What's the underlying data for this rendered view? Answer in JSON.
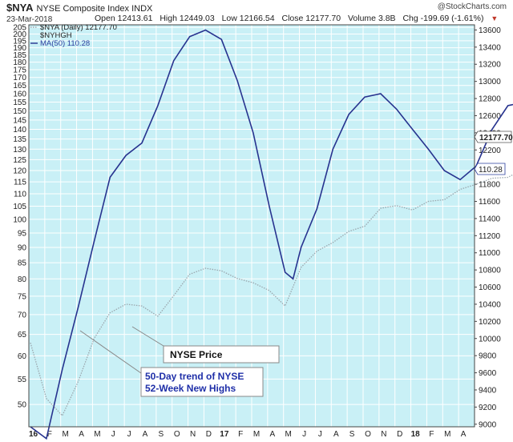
{
  "header": {
    "symbol": "$NYA",
    "description": "NYSE Composite Index  INDX",
    "date": "23-Mar-2018",
    "open_label": "Open",
    "open": "12413.61",
    "high_label": "High",
    "high": "12449.03",
    "low_label": "Low",
    "low": "12166.54",
    "close_label": "Close",
    "close": "12177.70",
    "volume_label": "Volume",
    "volume": "3.8B",
    "chg_label": "Chg",
    "chg": "-199.69 (-1.61%)",
    "brand": "@StockCharts.com"
  },
  "legend": {
    "price": "$NYA (Daily) 12177.70",
    "highs": "$NYHGH",
    "ma": "MA(50) 110.28"
  },
  "callouts": {
    "price": "NYSE Price",
    "trend_line1": "50-Day trend of NYSE",
    "trend_line2": "52-Week New Highs"
  },
  "last_value_tags": {
    "price": "12177.70",
    "ma": "110.28"
  },
  "colors": {
    "plot_bg": "#c9f0f6",
    "ma_line": "#27338f",
    "price_line": "#9aa6ad",
    "grid": "#ffffff",
    "callout_blue": "#1f2fa8",
    "down_arrow": "#c0392b"
  },
  "chart_data": {
    "type": "line",
    "x_ticks": [
      "16",
      "F",
      "M",
      "A",
      "M",
      "J",
      "J",
      "A",
      "S",
      "O",
      "N",
      "D",
      "17",
      "F",
      "M",
      "A",
      "M",
      "J",
      "J",
      "A",
      "S",
      "O",
      "N",
      "D",
      "18",
      "F",
      "M",
      "A"
    ],
    "left_axis": {
      "ticks": [
        50,
        55,
        60,
        65,
        70,
        75,
        80,
        85,
        90,
        95,
        100,
        105,
        110,
        115,
        120,
        125,
        130,
        135,
        140,
        145,
        150,
        155,
        160,
        165,
        170,
        175,
        180,
        185,
        190,
        195,
        200,
        205
      ],
      "scale": "log",
      "range": [
        46,
        207
      ]
    },
    "right_axis": {
      "ticks": [
        9000,
        9200,
        9400,
        9600,
        9800,
        10000,
        10200,
        10400,
        10600,
        10800,
        11000,
        11200,
        11400,
        11600,
        11800,
        12000,
        12200,
        12400,
        12600,
        12800,
        13000,
        13200,
        13400,
        13600
      ],
      "range": [
        8970,
        13660
      ]
    },
    "series": [
      {
        "name": "$NYHGH",
        "axis": "left",
        "values": [
          [
            0,
            46
          ],
          [
            1,
            44
          ],
          [
            2,
            57
          ],
          [
            3,
            72
          ],
          [
            4,
            92
          ],
          [
            5,
            117
          ],
          [
            6,
            127
          ],
          [
            7,
            133
          ],
          [
            8,
            153
          ],
          [
            9,
            181
          ],
          [
            10,
            198
          ],
          [
            11,
            203
          ],
          [
            12,
            196
          ],
          [
            13,
            168
          ],
          [
            14,
            138
          ],
          [
            15,
            105
          ],
          [
            16,
            82
          ],
          [
            16.5,
            80
          ],
          [
            17,
            90
          ],
          [
            18,
            104
          ],
          [
            19,
            130
          ],
          [
            20,
            148
          ],
          [
            21,
            158
          ],
          [
            22,
            160
          ],
          [
            23,
            151
          ],
          [
            24,
            140
          ],
          [
            25,
            130
          ],
          [
            26,
            120
          ],
          [
            27,
            116
          ],
          [
            28,
            122
          ],
          [
            29,
            140
          ],
          [
            30,
            153
          ],
          [
            31,
            155
          ],
          [
            32,
            148
          ],
          [
            33,
            135
          ],
          [
            34,
            120
          ],
          [
            35,
            112
          ],
          [
            36,
            118
          ],
          [
            37,
            130
          ],
          [
            38,
            147
          ],
          [
            39,
            157
          ],
          [
            40,
            162
          ],
          [
            41,
            178
          ],
          [
            42,
            193
          ],
          [
            43,
            200
          ],
          [
            44,
            176
          ],
          [
            45,
            160
          ],
          [
            46,
            150
          ],
          [
            47,
            146
          ],
          [
            47.5,
            139
          ],
          [
            48,
            118
          ],
          [
            48.5,
            110.28
          ]
        ]
      },
      {
        "name": "$NYA (Daily)",
        "axis": "right",
        "values": [
          [
            0,
            9950
          ],
          [
            1,
            9300
          ],
          [
            2,
            9100
          ],
          [
            3,
            9500
          ],
          [
            4,
            10000
          ],
          [
            5,
            10300
          ],
          [
            6,
            10400
          ],
          [
            7,
            10380
          ],
          [
            8,
            10260
          ],
          [
            9,
            10500
          ],
          [
            10,
            10750
          ],
          [
            11,
            10820
          ],
          [
            12,
            10790
          ],
          [
            13,
            10700
          ],
          [
            14,
            10650
          ],
          [
            15,
            10560
          ],
          [
            16,
            10380
          ],
          [
            17,
            10830
          ],
          [
            18,
            11020
          ],
          [
            19,
            11120
          ],
          [
            20,
            11250
          ],
          [
            21,
            11310
          ],
          [
            22,
            11520
          ],
          [
            23,
            11550
          ],
          [
            24,
            11500
          ],
          [
            25,
            11600
          ],
          [
            26,
            11620
          ],
          [
            27,
            11740
          ],
          [
            28,
            11800
          ],
          [
            29,
            11870
          ],
          [
            30,
            11880
          ],
          [
            31,
            11980
          ],
          [
            32,
            12020
          ],
          [
            33,
            12120
          ],
          [
            34,
            12250
          ],
          [
            35,
            12300
          ],
          [
            36,
            12350
          ],
          [
            37,
            12320
          ],
          [
            38,
            12400
          ],
          [
            39,
            12510
          ],
          [
            40,
            12580
          ],
          [
            41,
            12820
          ],
          [
            42,
            13150
          ],
          [
            43,
            13580
          ],
          [
            44,
            12900
          ],
          [
            45,
            12500
          ],
          [
            46,
            12650
          ],
          [
            47,
            12750
          ],
          [
            48,
            12600
          ],
          [
            48.5,
            12177.7
          ]
        ]
      }
    ],
    "annotations": [
      "NYSE Price",
      "50-Day trend of NYSE",
      "52-Week New Highs"
    ]
  }
}
